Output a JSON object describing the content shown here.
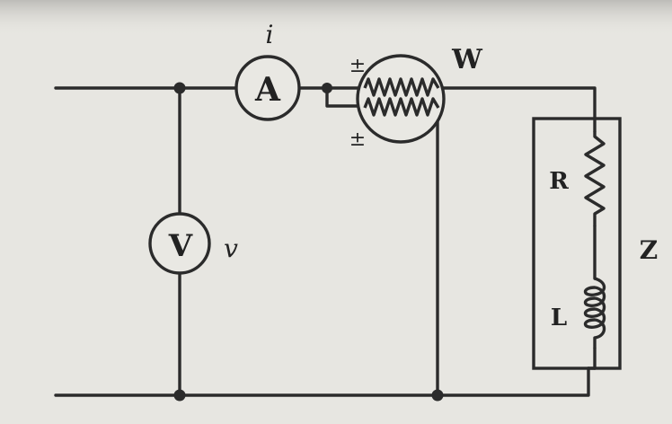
{
  "diagram": {
    "ammeter_symbol": "A",
    "current_label": "i",
    "voltmeter_symbol": "V",
    "voltage_label": "v",
    "wattmeter_label": "W",
    "polarity_mark_current": "±",
    "polarity_mark_voltage": "±",
    "resistor_label": "R",
    "inductor_label": "L",
    "impedance_label": "Z"
  },
  "colors": {
    "background": "#e7e6e1",
    "ink": "#2b2b2b"
  }
}
